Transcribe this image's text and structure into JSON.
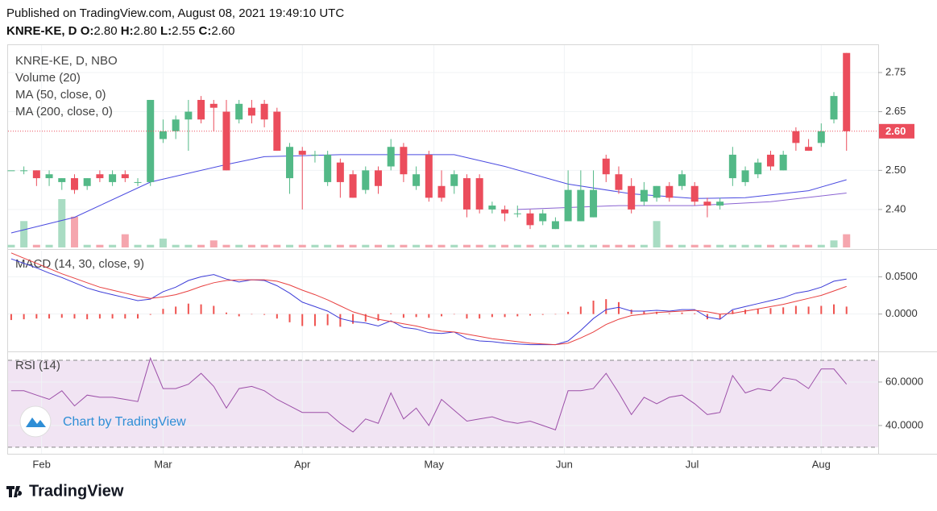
{
  "header": {
    "published": "Published on TradingView.com, August 08, 2021 19:49:10 UTC",
    "symbol": "KNRE-KE, D",
    "ohlc": [
      {
        "key": "O:",
        "value": "2.80"
      },
      {
        "key": "H:",
        "value": "2.80"
      },
      {
        "key": "L:",
        "value": "2.55"
      },
      {
        "key": "C:",
        "value": "2.60"
      }
    ]
  },
  "watermark": "Chart by TradingView",
  "footer": "TradingView",
  "chart_data": [
    {
      "type": "candlestick",
      "title": "KNRE-KE, D, NBO",
      "up_color": "#53b987",
      "down_color": "#eb4d5c",
      "xlim": [
        -0.25,
        68.5
      ],
      "xticks": [
        {
          "value": 2.4,
          "label": "Feb"
        },
        {
          "value": 12,
          "label": "Mar"
        },
        {
          "value": 23,
          "label": "Apr"
        },
        {
          "value": 33.4,
          "label": "May"
        },
        {
          "value": 43.7,
          "label": "Jun"
        },
        {
          "value": 53.8,
          "label": "Jul"
        },
        {
          "value": 64,
          "label": "Aug"
        }
      ],
      "ylim": [
        2.303,
        2.82
      ],
      "yticks": [
        {
          "value": 2.4,
          "label": "2.40"
        },
        {
          "value": 2.5,
          "label": "2.50"
        },
        {
          "value": 2.65,
          "label": "2.65"
        },
        {
          "value": 2.75,
          "label": "2.75"
        }
      ],
      "grid": true,
      "last_price": {
        "value": 2.6,
        "label": "2.60"
      },
      "ohlc": [
        [
          2.5,
          2.5,
          2.5,
          2.5
        ],
        [
          2.5,
          2.51,
          2.49,
          2.5
        ],
        [
          2.5,
          2.5,
          2.46,
          2.48
        ],
        [
          2.48,
          2.5,
          2.46,
          2.49
        ],
        [
          2.47,
          2.48,
          2.45,
          2.48
        ],
        [
          2.48,
          2.49,
          2.44,
          2.45
        ],
        [
          2.46,
          2.48,
          2.45,
          2.48
        ],
        [
          2.49,
          2.5,
          2.47,
          2.48
        ],
        [
          2.47,
          2.5,
          2.46,
          2.49
        ],
        [
          2.49,
          2.5,
          2.47,
          2.48
        ],
        [
          2.47,
          2.48,
          2.46,
          2.47
        ],
        [
          2.47,
          2.68,
          2.46,
          2.68
        ],
        [
          2.58,
          2.63,
          2.57,
          2.6
        ],
        [
          2.6,
          2.64,
          2.58,
          2.63
        ],
        [
          2.63,
          2.68,
          2.55,
          2.65
        ],
        [
          2.68,
          2.69,
          2.62,
          2.63
        ],
        [
          2.67,
          2.68,
          2.6,
          2.66
        ],
        [
          2.65,
          2.68,
          2.5,
          2.5
        ],
        [
          2.63,
          2.68,
          2.62,
          2.67
        ],
        [
          2.66,
          2.68,
          2.62,
          2.64
        ],
        [
          2.67,
          2.68,
          2.61,
          2.63
        ],
        [
          2.65,
          2.66,
          2.55,
          2.55
        ],
        [
          2.48,
          2.57,
          2.44,
          2.56
        ],
        [
          2.55,
          2.56,
          2.4,
          2.54
        ],
        [
          2.54,
          2.55,
          2.52,
          2.54
        ],
        [
          2.47,
          2.55,
          2.46,
          2.54
        ],
        [
          2.52,
          2.53,
          2.43,
          2.47
        ],
        [
          2.49,
          2.5,
          2.43,
          2.43
        ],
        [
          2.45,
          2.51,
          2.44,
          2.5
        ],
        [
          2.5,
          2.51,
          2.44,
          2.46
        ],
        [
          2.51,
          2.58,
          2.5,
          2.56
        ],
        [
          2.56,
          2.57,
          2.47,
          2.49
        ],
        [
          2.46,
          2.51,
          2.45,
          2.49
        ],
        [
          2.54,
          2.55,
          2.42,
          2.43
        ],
        [
          2.46,
          2.5,
          2.42,
          2.43
        ],
        [
          2.46,
          2.5,
          2.44,
          2.49
        ],
        [
          2.48,
          2.49,
          2.38,
          2.4
        ],
        [
          2.48,
          2.49,
          2.39,
          2.4
        ],
        [
          2.4,
          2.42,
          2.39,
          2.41
        ],
        [
          2.4,
          2.41,
          2.37,
          2.39
        ],
        [
          2.39,
          2.41,
          2.38,
          2.39
        ],
        [
          2.39,
          2.4,
          2.35,
          2.36
        ],
        [
          2.37,
          2.4,
          2.36,
          2.39
        ],
        [
          2.35,
          2.38,
          2.35,
          2.37
        ],
        [
          2.37,
          2.5,
          2.37,
          2.45
        ],
        [
          2.37,
          2.5,
          2.37,
          2.45
        ],
        [
          2.38,
          2.5,
          2.38,
          2.45
        ],
        [
          2.53,
          2.54,
          2.47,
          2.49
        ],
        [
          2.49,
          2.51,
          2.44,
          2.45
        ],
        [
          2.46,
          2.48,
          2.39,
          2.4
        ],
        [
          2.42,
          2.47,
          2.41,
          2.45
        ],
        [
          2.43,
          2.46,
          2.42,
          2.46
        ],
        [
          2.46,
          2.47,
          2.42,
          2.43
        ],
        [
          2.46,
          2.5,
          2.45,
          2.49
        ],
        [
          2.46,
          2.47,
          2.41,
          2.42
        ],
        [
          2.42,
          2.43,
          2.38,
          2.41
        ],
        [
          2.41,
          2.43,
          2.4,
          2.42
        ],
        [
          2.48,
          2.56,
          2.46,
          2.54
        ],
        [
          2.47,
          2.51,
          2.46,
          2.5
        ],
        [
          2.49,
          2.53,
          2.48,
          2.52
        ],
        [
          2.54,
          2.55,
          2.5,
          2.51
        ],
        [
          2.5,
          2.55,
          2.5,
          2.54
        ],
        [
          2.6,
          2.61,
          2.55,
          2.57
        ],
        [
          2.56,
          2.58,
          2.55,
          2.55
        ],
        [
          2.57,
          2.62,
          2.56,
          2.6
        ],
        [
          2.63,
          2.7,
          2.62,
          2.69
        ],
        [
          2.8,
          2.8,
          2.55,
          2.6
        ]
      ],
      "volume": {
        "name": "Volume (20)",
        "up_color": "#a9dcc3",
        "down_color": "#f5a6ae",
        "values": [
          3,
          30,
          3,
          3,
          55,
          35,
          3,
          3,
          3,
          15,
          3,
          3,
          10,
          3,
          3,
          3,
          8,
          3,
          3,
          3,
          3,
          3,
          3,
          3,
          3,
          3,
          3,
          3,
          3,
          3,
          3,
          3,
          3,
          3,
          3,
          3,
          3,
          3,
          3,
          3,
          3,
          3,
          3,
          3,
          3,
          3,
          3,
          3,
          3,
          3,
          3,
          30,
          3,
          3,
          3,
          3,
          3,
          3,
          3,
          3,
          3,
          3,
          3,
          3,
          3,
          8,
          15
        ]
      },
      "series": [
        {
          "name": "MA (50, close, 0)",
          "color": "#4a4ae0",
          "x": [
            0,
            5,
            11,
            17,
            20,
            26,
            35,
            39,
            44,
            49,
            54,
            58,
            63,
            66
          ],
          "values": [
            2.34,
            2.38,
            2.47,
            2.515,
            2.535,
            2.54,
            2.54,
            2.51,
            2.465,
            2.44,
            2.428,
            2.43,
            2.448,
            2.476
          ]
        },
        {
          "name": "MA (200, close, 0)",
          "color": "#8a63d2",
          "x": [
            40,
            48,
            54,
            60,
            66
          ],
          "values": [
            2.4,
            2.41,
            2.41,
            2.42,
            2.442
          ]
        }
      ]
    },
    {
      "type": "macd",
      "title": "MACD (14, 30, close, 9)",
      "xlim": [
        -0.25,
        68.5
      ],
      "ylim": [
        -0.049,
        0.085
      ],
      "yticks": [
        {
          "value": 0.05,
          "label": "0.0500"
        },
        {
          "value": 0,
          "label": "0.0000"
        }
      ],
      "macd": {
        "color": "#3c3cd8",
        "values": [
          0.074,
          0.068,
          0.062,
          0.055,
          0.049,
          0.042,
          0.035,
          0.03,
          0.026,
          0.022,
          0.018,
          0.02,
          0.03,
          0.036,
          0.045,
          0.05,
          0.053,
          0.047,
          0.043,
          0.046,
          0.045,
          0.038,
          0.028,
          0.016,
          0.01,
          0.004,
          -0.006,
          -0.01,
          -0.012,
          -0.016,
          -0.009,
          -0.018,
          -0.02,
          -0.025,
          -0.026,
          -0.024,
          -0.033,
          -0.036,
          -0.037,
          -0.039,
          -0.04,
          -0.041,
          -0.041,
          -0.041,
          -0.036,
          -0.022,
          -0.006,
          0.006,
          0.009,
          0.004,
          0.004,
          0.005,
          0.004,
          0.006,
          0.006,
          -0.004,
          -0.007,
          0.006,
          0.01,
          0.014,
          0.018,
          0.022,
          0.028,
          0.031,
          0.036,
          0.044,
          0.047
        ]
      },
      "signal": {
        "color": "#e84040",
        "values": [
          0.082,
          0.075,
          0.068,
          0.061,
          0.054,
          0.048,
          0.042,
          0.036,
          0.032,
          0.028,
          0.024,
          0.021,
          0.023,
          0.026,
          0.031,
          0.037,
          0.042,
          0.045,
          0.046,
          0.046,
          0.046,
          0.044,
          0.039,
          0.032,
          0.026,
          0.019,
          0.011,
          0.003,
          -0.002,
          -0.007,
          -0.01,
          -0.013,
          -0.016,
          -0.02,
          -0.023,
          -0.024,
          -0.027,
          -0.03,
          -0.033,
          -0.035,
          -0.037,
          -0.039,
          -0.04,
          -0.041,
          -0.039,
          -0.032,
          -0.024,
          -0.014,
          -0.007,
          -0.002,
          0.0,
          0.002,
          0.003,
          0.004,
          0.005,
          0.003,
          0.0,
          0.001,
          0.004,
          0.007,
          0.01,
          0.013,
          0.017,
          0.021,
          0.025,
          0.031,
          0.037
        ]
      },
      "histogram": {
        "color": "#ef5350",
        "values": [
          -0.008,
          -0.007,
          -0.006,
          -0.006,
          -0.005,
          -0.006,
          -0.007,
          -0.006,
          -0.006,
          -0.006,
          -0.006,
          -0.001,
          0.007,
          0.01,
          0.014,
          0.013,
          0.011,
          0.002,
          -0.003,
          0.0,
          -0.001,
          -0.006,
          -0.011,
          -0.016,
          -0.016,
          -0.015,
          -0.017,
          -0.013,
          -0.01,
          -0.009,
          0.001,
          -0.005,
          -0.004,
          -0.005,
          -0.003,
          0.0,
          -0.006,
          -0.006,
          -0.004,
          -0.004,
          -0.003,
          -0.002,
          -0.001,
          0.0,
          0.003,
          0.01,
          0.018,
          0.02,
          0.016,
          0.006,
          0.004,
          0.003,
          0.001,
          0.002,
          0.001,
          -0.007,
          -0.007,
          0.005,
          0.006,
          0.007,
          0.008,
          0.009,
          0.011,
          0.01,
          0.011,
          0.013,
          0.01
        ]
      }
    },
    {
      "type": "line",
      "title": "RSI (14)",
      "xlim": [
        -0.25,
        68.5
      ],
      "ylim": [
        27,
        73.7
      ],
      "yticks": [
        {
          "value": 60,
          "label": "60.0000"
        },
        {
          "value": 40,
          "label": "40.0000"
        }
      ],
      "bands": [
        30,
        70
      ],
      "band_color": "#f1e4f3",
      "color": "#9c4fa8",
      "values": [
        56,
        56,
        54,
        52,
        56,
        49,
        54,
        53,
        53,
        52,
        51,
        71,
        57,
        57,
        59,
        64,
        58,
        48,
        57,
        58,
        56,
        52,
        49,
        46,
        46,
        46,
        41,
        37,
        43,
        41,
        55,
        43,
        48,
        40,
        52,
        47,
        42,
        43,
        44,
        42,
        41,
        42,
        40,
        38,
        56,
        56,
        57,
        64,
        55,
        45,
        53,
        50,
        53,
        54,
        50,
        45,
        46,
        63,
        55,
        57,
        56,
        62,
        61,
        57,
        66,
        66,
        59
      ]
    }
  ]
}
